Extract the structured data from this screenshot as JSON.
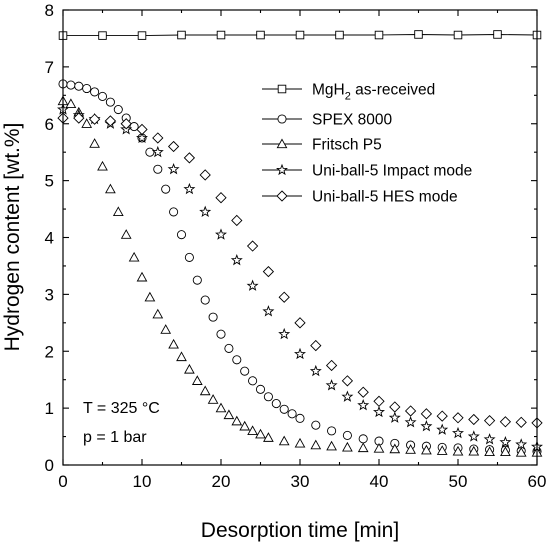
{
  "chart_data": {
    "type": "line",
    "xlabel": "Desorption time [min]",
    "ylabel": "Hydrogen content [wt.%]",
    "xlim": [
      0,
      60
    ],
    "ylim": [
      0,
      8
    ],
    "xticks": [
      0,
      10,
      20,
      30,
      40,
      50,
      60
    ],
    "yticks": [
      0,
      1,
      2,
      3,
      4,
      5,
      6,
      7,
      8
    ],
    "grid": false,
    "legend_position": "top-right",
    "annotations": [
      "T = 325 °C",
      "p = 1 bar"
    ],
    "series": [
      {
        "name": "MgH2 as-received",
        "name_main": "MgH",
        "name_sub": "2",
        "name_rest": " as-received",
        "marker": "square",
        "line": true,
        "x": [
          0,
          5,
          10,
          15,
          20,
          25,
          30,
          35,
          40,
          45,
          50,
          55,
          60
        ],
        "y": [
          7.55,
          7.55,
          7.55,
          7.56,
          7.56,
          7.56,
          7.56,
          7.56,
          7.56,
          7.57,
          7.56,
          7.57,
          7.56
        ]
      },
      {
        "name": "SPEX 8000",
        "marker": "circle",
        "x": [
          0,
          1,
          2,
          3,
          4,
          5,
          6,
          7,
          8,
          9,
          10,
          11,
          12,
          13,
          14,
          15,
          16,
          17,
          18,
          19,
          20,
          21,
          22,
          23,
          24,
          25,
          26,
          27,
          28,
          29,
          30,
          32,
          34,
          36,
          38,
          40,
          42,
          44,
          46,
          48,
          50,
          52,
          54,
          56,
          58,
          60
        ],
        "y": [
          6.7,
          6.68,
          6.66,
          6.62,
          6.56,
          6.48,
          6.38,
          6.25,
          6.1,
          5.95,
          5.75,
          5.5,
          5.2,
          4.85,
          4.45,
          4.05,
          3.65,
          3.25,
          2.9,
          2.6,
          2.3,
          2.05,
          1.85,
          1.65,
          1.48,
          1.33,
          1.2,
          1.08,
          0.98,
          0.9,
          0.82,
          0.7,
          0.6,
          0.52,
          0.46,
          0.42,
          0.38,
          0.35,
          0.33,
          0.31,
          0.3,
          0.28,
          0.27,
          0.26,
          0.25,
          0.24
        ]
      },
      {
        "name": "Fritsch P5",
        "marker": "triangle",
        "x": [
          0,
          1,
          2,
          3,
          4,
          5,
          6,
          7,
          8,
          9,
          10,
          11,
          12,
          13,
          14,
          15,
          16,
          17,
          18,
          19,
          20,
          21,
          22,
          23,
          24,
          25,
          26,
          28,
          30,
          32,
          34,
          36,
          38,
          40,
          42,
          44,
          46,
          48,
          50,
          52,
          54,
          56,
          58,
          60
        ],
        "y": [
          6.4,
          6.35,
          6.2,
          6.0,
          5.65,
          5.25,
          4.85,
          4.45,
          4.05,
          3.65,
          3.3,
          2.95,
          2.65,
          2.38,
          2.12,
          1.9,
          1.68,
          1.48,
          1.3,
          1.15,
          1.0,
          0.88,
          0.77,
          0.68,
          0.6,
          0.54,
          0.48,
          0.42,
          0.38,
          0.35,
          0.33,
          0.31,
          0.3,
          0.29,
          0.28,
          0.27,
          0.26,
          0.25,
          0.24,
          0.24,
          0.23,
          0.23,
          0.22,
          0.22
        ]
      },
      {
        "name": "Uni-ball-5 Impact mode",
        "marker": "star",
        "x": [
          0,
          2,
          4,
          6,
          8,
          10,
          12,
          14,
          16,
          18,
          20,
          22,
          24,
          26,
          28,
          30,
          32,
          34,
          36,
          38,
          40,
          42,
          44,
          46,
          48,
          50,
          52,
          54,
          56,
          58,
          60
        ],
        "y": [
          6.25,
          6.15,
          6.08,
          6.0,
          5.9,
          5.75,
          5.5,
          5.2,
          4.85,
          4.45,
          4.05,
          3.6,
          3.15,
          2.7,
          2.3,
          1.95,
          1.65,
          1.4,
          1.2,
          1.05,
          0.93,
          0.83,
          0.75,
          0.68,
          0.62,
          0.56,
          0.5,
          0.45,
          0.4,
          0.36,
          0.32
        ]
      },
      {
        "name": "Uni-ball-5 HES mode",
        "marker": "diamond",
        "x": [
          0,
          2,
          4,
          6,
          8,
          10,
          12,
          14,
          16,
          18,
          20,
          22,
          24,
          26,
          28,
          30,
          32,
          34,
          36,
          38,
          40,
          42,
          44,
          46,
          48,
          50,
          52,
          54,
          56,
          58,
          60
        ],
        "y": [
          6.1,
          6.1,
          6.08,
          6.05,
          6.0,
          5.9,
          5.75,
          5.6,
          5.4,
          5.1,
          4.7,
          4.3,
          3.85,
          3.4,
          2.95,
          2.5,
          2.1,
          1.75,
          1.48,
          1.28,
          1.12,
          1.02,
          0.95,
          0.9,
          0.86,
          0.83,
          0.8,
          0.78,
          0.76,
          0.75,
          0.74
        ]
      }
    ]
  }
}
